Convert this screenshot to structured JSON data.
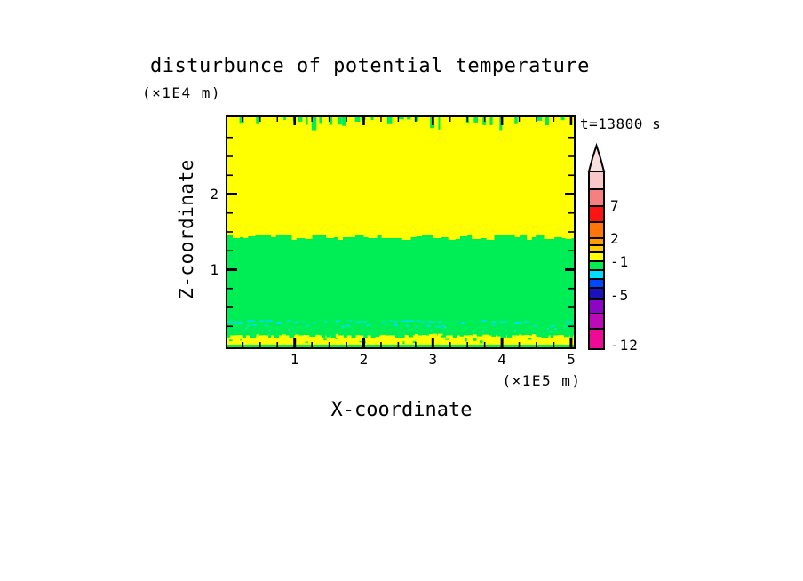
{
  "title": "disturbunce of potential temperature",
  "time_label": "t=13800 s",
  "x_axis": {
    "label": "X-coordinate",
    "unit": "(×1E5 m)",
    "tick_labels": [
      "1",
      "2",
      "3",
      "4",
      "5"
    ]
  },
  "y_axis": {
    "label": "Z-coordinate",
    "unit": "(×1E4 m)",
    "tick_labels": [
      "2",
      "1"
    ]
  },
  "colorbar": {
    "tick_labels": [
      "7",
      "2",
      "-1",
      "-5",
      "-12"
    ],
    "arrow_color": "#fbdede",
    "cells": [
      {
        "color": "#f8c8c8",
        "height": 20
      },
      {
        "color": "#f58080",
        "height": 19
      },
      {
        "color": "#fb1412",
        "height": 18
      },
      {
        "color": "#ff7508",
        "height": 18
      },
      {
        "color": "#ff9c00",
        "height": 8
      },
      {
        "color": "#ffcc00",
        "height": 8
      },
      {
        "color": "#ffff00",
        "height": 10
      },
      {
        "color": "#00ee50",
        "height": 10
      },
      {
        "color": "#00dcff",
        "height": 10
      },
      {
        "color": "#0048ff",
        "height": 10
      },
      {
        "color": "#1c12bc",
        "height": 13
      },
      {
        "color": "#8a06c4",
        "height": 16
      },
      {
        "color": "#bc0ab8",
        "height": 17
      },
      {
        "color": "#ee0a97",
        "height": 23
      }
    ]
  },
  "field_colors": {
    "yellow": "#ffff00",
    "green": "#00ee55",
    "cyan": "#00dcff",
    "teal_dot": "#22e2c2",
    "tick": "#000000"
  },
  "chart_data": {
    "type": "heatmap",
    "title": "disturbunce of potential temperature",
    "xlabel": "X-coordinate (×1E5 m)",
    "ylabel": "Z-coordinate (×1E4 m)",
    "xlim": [
      0,
      5
    ],
    "ylim": [
      0,
      3.05
    ],
    "x_major_ticks": [
      1,
      2,
      3,
      4,
      5
    ],
    "y_major_ticks": [
      1,
      2
    ],
    "minor_tick_step": 0.25,
    "time_annotation": "t=13800 s",
    "colorbar_levels_labeled": [
      7,
      2,
      -1,
      -5,
      -12
    ],
    "palette_top_to_bottom": [
      "#f8c8c8",
      "#f58080",
      "#fb1412",
      "#ff7508",
      "#ff9c00",
      "#ffcc00",
      "#ffff00",
      "#00ee50",
      "#00dcff",
      "#0048ff",
      "#1c12bc",
      "#8a06c4",
      "#bc0ab8",
      "#ee0a97"
    ],
    "regions": [
      {
        "name": "upper yellow band",
        "color": "#ffff00",
        "z_range": [
          1.46,
          3.05
        ],
        "x_range": [
          0,
          5
        ],
        "note": "uniform yellow disturbance band; small green notches hang from the top boundary"
      },
      {
        "name": "middle green band",
        "color": "#00ee55",
        "z_range": [
          0.17,
          1.46
        ],
        "x_range": [
          0,
          5
        ],
        "note": "uniform green band; wavy stepped interface with the yellow band at z≈1.46"
      },
      {
        "name": "cyan speckle line",
        "color": "#00dcff",
        "z_range": [
          0.28,
          0.36
        ],
        "x_range": [
          0,
          5
        ],
        "note": "broken horizontal line of cyan speckles with sparse teal dots just below"
      },
      {
        "name": "near-surface yellow strip",
        "color": "#ffff00",
        "z_range": [
          0.02,
          0.17
        ],
        "x_range": [
          0,
          5
        ],
        "note": "ragged thin yellow strip with green speckles and a green sliver at the bottom edge"
      }
    ]
  }
}
